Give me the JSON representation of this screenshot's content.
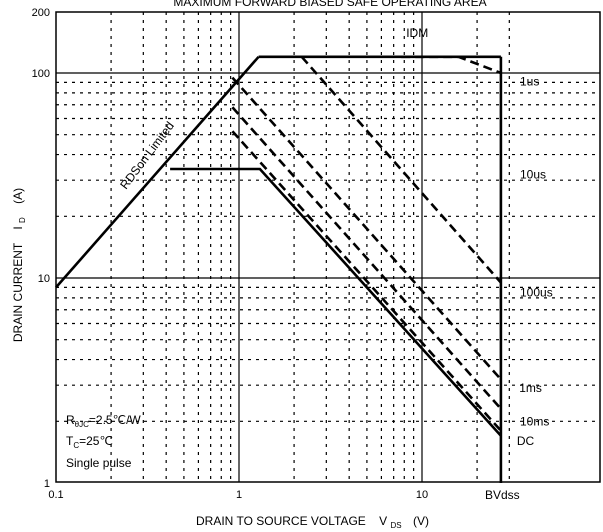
{
  "chart_data": {
    "type": "line",
    "title": "MAXIMUM FORWARD BIASED SAFE OPERATING AREA",
    "xlabel": {
      "main": "DRAIN TO SOURCE VOLTAGE",
      "symbol": "V",
      "subscript": "DS",
      "unit": "(V)"
    },
    "ylabel": {
      "main": "DRAIN CURRENT",
      "symbol": "I",
      "subscript": "D",
      "unit": "(A)"
    },
    "xscale": "log",
    "yscale": "log",
    "xlim": [
      0.1,
      30
    ],
    "ylim": [
      1,
      200
    ],
    "x_ticks": [
      "0.1",
      "1",
      "10"
    ],
    "y_ticks": [
      "1",
      "10",
      "100",
      "200"
    ],
    "grid": true,
    "series": [
      {
        "name": "RDSon Limited",
        "style": "solid",
        "x": [
          0.1,
          1.28
        ],
        "y": [
          9.0,
          120
        ]
      },
      {
        "name": "IDM",
        "style": "solid",
        "x": [
          1.28,
          27
        ],
        "y": [
          120,
          120
        ]
      },
      {
        "name": "1us",
        "style": "dashed",
        "x": [
          7.7,
          15.8,
          27
        ],
        "y": [
          120,
          120,
          100
        ]
      },
      {
        "name": "10us",
        "style": "dashed",
        "x": [
          2.2,
          27
        ],
        "y": [
          120,
          9.5
        ]
      },
      {
        "name": "100us",
        "style": "dashed",
        "x": [
          0.92,
          27
        ],
        "y": [
          95,
          3.2
        ]
      },
      {
        "name": "1ms",
        "style": "dashed",
        "x": [
          0.92,
          27
        ],
        "y": [
          68,
          2.3
        ]
      },
      {
        "name": "10ms",
        "style": "dashed",
        "x": [
          0.92,
          27
        ],
        "y": [
          52,
          1.8
        ]
      },
      {
        "name": "DC",
        "style": "solid",
        "x": [
          0.42,
          1.3,
          27
        ],
        "y": [
          34,
          34,
          1.7
        ]
      },
      {
        "name": "BVdss",
        "style": "solid",
        "x": [
          27,
          27
        ],
        "y": [
          1,
          120
        ]
      }
    ],
    "curve_labels": [
      {
        "text": "IDM",
        "x": 8.2,
        "y": 150
      },
      {
        "text": "1us",
        "x": 35,
        "y": 91
      },
      {
        "text": "10us",
        "x": 35,
        "y": 32
      },
      {
        "text": "100us",
        "x": 36,
        "y": 8.5
      },
      {
        "text": "1ms",
        "x": 34,
        "y": 2.9
      },
      {
        "text": "10ms",
        "x": 35,
        "y": 2.0
      },
      {
        "text": "DC",
        "x": 33,
        "y": 1.6
      },
      {
        "text": "BVdss",
        "x": 27,
        "y": 0.84
      }
    ],
    "rdson_label": "RDSon Limited",
    "annotations": [
      {
        "main": "R",
        "subscript": "θJC",
        "rest": "=2.5℃/W"
      },
      {
        "main": "T",
        "subscript": "C",
        "rest": "=25℃"
      },
      {
        "main": "Single pulse",
        "subscript": "",
        "rest": ""
      }
    ]
  }
}
